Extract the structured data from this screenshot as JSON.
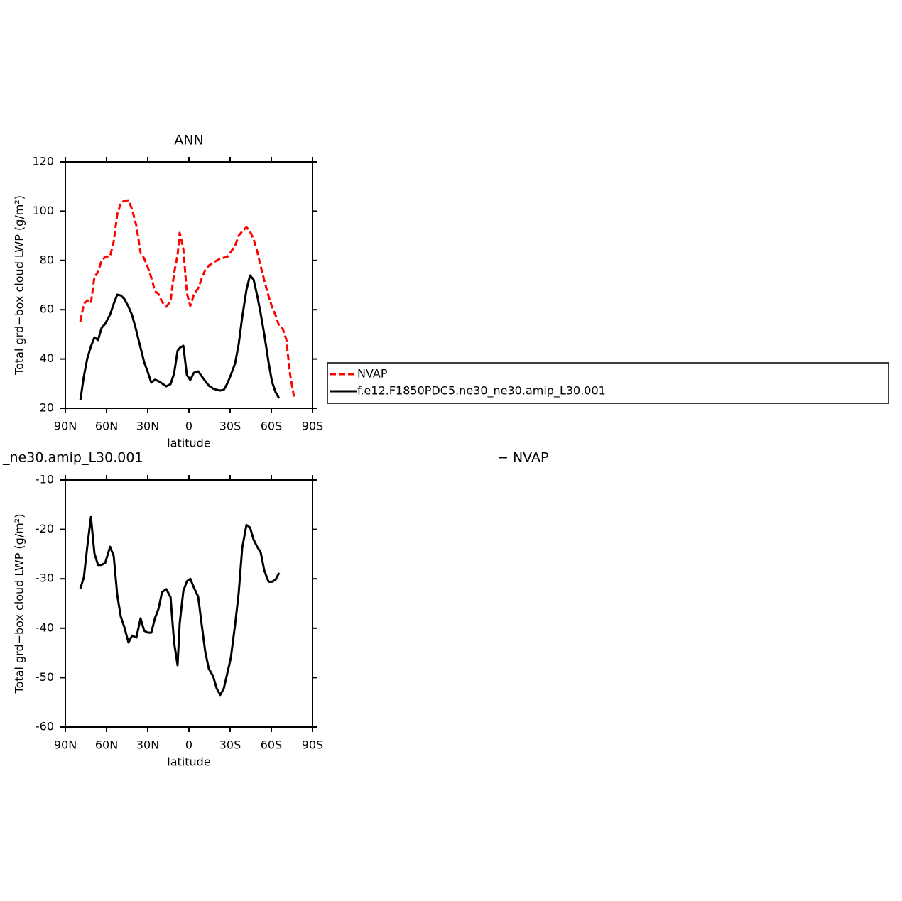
{
  "chart_data": [
    {
      "type": "line",
      "title": "ANN",
      "xlabel": "latitude",
      "ylabel": "Total grd−box cloud LWP (g/m²)",
      "x": [
        79.1,
        76.5,
        74,
        71.4,
        68.8,
        66.2,
        63.6,
        61,
        57.4,
        54.8,
        52.2,
        49.6,
        47.1,
        44,
        41.4,
        38.3,
        35.2,
        32.6,
        30,
        27.4,
        24.8,
        22.2,
        19.6,
        16.5,
        13.4,
        10.8,
        8.3,
        6.7,
        4.1,
        1.5,
        -1,
        -3.6,
        -6.7,
        -9.3,
        -11.9,
        -14.5,
        -17.6,
        -20.2,
        -22.8,
        -25.4,
        -28,
        -30.5,
        -33.6,
        -36.2,
        -38.8,
        -41.9,
        -44.5,
        -47.1,
        -49.7,
        -52.3,
        -54.9,
        -58,
        -60.5,
        -63.1,
        -65.7,
        -68.3,
        -70.9,
        -73.5,
        -76.6
      ],
      "series": [
        {
          "name": "NVAP",
          "color": "#ff0000",
          "dash": true,
          "values": [
            55.2,
            62.4,
            63.8,
            62.7,
            73.3,
            75.3,
            79.9,
            81.4,
            81.7,
            87.7,
            98.7,
            103.3,
            104.2,
            104.4,
            100.7,
            94.1,
            83.1,
            80.8,
            77.3,
            73,
            67.6,
            66.4,
            63.2,
            61.2,
            63.5,
            74.8,
            82.2,
            91.2,
            84.8,
            66.7,
            61.5,
            66.1,
            68.7,
            72.7,
            76.2,
            77.9,
            79.1,
            79.9,
            80.8,
            81.1,
            81.4,
            83.4,
            86,
            90,
            91.8,
            93.5,
            91.8,
            88.6,
            83.7,
            77.6,
            71.9,
            65.5,
            61.2,
            57.8,
            53.4,
            52.3,
            48,
            34.4,
            24.3
          ]
        },
        {
          "name": "f.e12.F1850PDC5.ne30_ne30.amip_L30.001",
          "color": "#000000",
          "dash": false,
          "values": [
            23.2,
            33,
            40.2,
            45.1,
            48.8,
            47.7,
            52.6,
            54.3,
            58,
            62.4,
            66.1,
            65.8,
            64.4,
            61.2,
            57.8,
            51.4,
            44.5,
            38.7,
            34.7,
            30.4,
            31.6,
            31,
            30.1,
            28.9,
            29.8,
            34.1,
            43.3,
            44.5,
            45.4,
            33.5,
            31.5,
            34.4,
            35,
            33,
            31,
            29.2,
            28,
            27.5,
            27.2,
            27.5,
            30.1,
            33.5,
            38.2,
            45.9,
            56.9,
            68.1,
            73.9,
            72.2,
            65.8,
            58.3,
            50,
            38.7,
            30.7,
            26.6,
            24,
            null,
            null,
            null,
            null
          ]
        }
      ],
      "xlim": [
        90,
        -90
      ],
      "xticks": [
        {
          "value": 90,
          "label": "90N"
        },
        {
          "value": 60,
          "label": "60N"
        },
        {
          "value": 30,
          "label": "30N"
        },
        0,
        {
          "value": -30,
          "label": "30S"
        },
        {
          "value": -60,
          "label": "60S"
        },
        {
          "value": -90,
          "label": "90S"
        }
      ],
      "ylim": [
        20,
        120
      ],
      "yticks": [
        20,
        40,
        60,
        80,
        100,
        120
      ],
      "legend": "right"
    },
    {
      "type": "line",
      "annotations": [
        "_ne30.amip_L30.001",
        "− NVAP"
      ],
      "xlabel": "latitude",
      "ylabel": "Total grd−box cloud LWP (g/m²)",
      "x": [
        79.1,
        76.5,
        74,
        71.4,
        68.8,
        66.2,
        63.6,
        61,
        57.4,
        54.8,
        52.2,
        49.6,
        47.1,
        44,
        41.4,
        38.3,
        35.2,
        32.6,
        30,
        27.4,
        24.8,
        22.2,
        19.6,
        16.5,
        13.4,
        10.8,
        8.3,
        6.7,
        4.1,
        1.5,
        -1,
        -3.6,
        -6.7,
        -9.3,
        -11.9,
        -14.5,
        -17.6,
        -20.2,
        -22.8,
        -25.4,
        -28,
        -30.5,
        -33.6,
        -36.2,
        -38.8,
        -41.9,
        -44.5,
        -47.1,
        -49.7,
        -52.3,
        -54.9,
        -58,
        -60.5,
        -63.1,
        -65.7,
        -68.3,
        -70.9,
        -73.5,
        -76.6
      ],
      "series": [
        {
          "color": "#000000",
          "dash": false,
          "values": [
            -32,
            -29.7,
            -23.5,
            -17.5,
            -24.9,
            -27.2,
            -27.2,
            -26.8,
            -23.5,
            -25.4,
            -33.3,
            -37.7,
            -39.7,
            -42.9,
            -41.5,
            -41.9,
            -38,
            -40.5,
            -40.9,
            -40.9,
            -38,
            -36.1,
            -32.7,
            -32.1,
            -33.7,
            -42.9,
            -47.5,
            -39,
            -32.5,
            -30.5,
            -30,
            -31.8,
            -33.6,
            -39.3,
            -44.8,
            -48.2,
            -49.7,
            -52.2,
            -53.5,
            -52.2,
            -49.1,
            -46,
            -39.3,
            -33,
            -23.8,
            -19.1,
            -19.6,
            -22.1,
            -23.5,
            -24.7,
            -28.3,
            -30.6,
            -30.6,
            -30.2,
            -28.8,
            null,
            null,
            null,
            null
          ]
        }
      ],
      "xlim": [
        90,
        -90
      ],
      "xticks": [
        {
          "value": 90,
          "label": "90N"
        },
        {
          "value": 60,
          "label": "60N"
        },
        {
          "value": 30,
          "label": "30N"
        },
        0,
        {
          "value": -30,
          "label": "30S"
        },
        {
          "value": -60,
          "label": "60S"
        },
        {
          "value": -90,
          "label": "90S"
        }
      ],
      "ylim": [
        -60,
        -10
      ],
      "yticks": [
        -60,
        -50,
        -40,
        -30,
        -20,
        -10
      ]
    }
  ]
}
